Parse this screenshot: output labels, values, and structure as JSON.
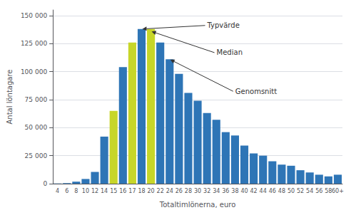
{
  "chart_data": {
    "type": "bar",
    "categories": [
      "4",
      "6",
      "8",
      "10",
      "12",
      "14",
      "15",
      "16",
      "17",
      "18",
      "20",
      "22",
      "24",
      "26",
      "28",
      "30",
      "32",
      "34",
      "36",
      "38",
      "40",
      "42",
      "44",
      "46",
      "48",
      "50",
      "52",
      "54",
      "56",
      "58",
      "60+"
    ],
    "values": [
      200,
      500,
      1800,
      4200,
      10500,
      42000,
      65000,
      104000,
      126000,
      138000,
      138000,
      126000,
      111000,
      98000,
      81000,
      74000,
      63000,
      57000,
      46000,
      43000,
      34000,
      27000,
      25000,
      20000,
      17000,
      16000,
      12000,
      10000,
      8000,
      6500,
      8000
    ],
    "colors": [
      "#2E75B6",
      "#2E75B6",
      "#2E75B6",
      "#2E75B6",
      "#2E75B6",
      "#2E75B6",
      "#C7D629",
      "#2E75B6",
      "#C7D629",
      "#2E75B6",
      "#C7D629",
      "#2E75B6",
      "#2E75B6",
      "#2E75B6",
      "#2E75B6",
      "#2E75B6",
      "#2E75B6",
      "#2E75B6",
      "#2E75B6",
      "#2E75B6",
      "#2E75B6",
      "#2E75B6",
      "#2E75B6",
      "#2E75B6",
      "#2E75B6",
      "#2E75B6",
      "#2E75B6",
      "#2E75B6",
      "#2E75B6",
      "#2E75B6",
      "#2E75B6"
    ],
    "xlabel": "Totaltimlönerna, euro",
    "ylabel": "Antal löntagare",
    "ylim": [
      0,
      155000
    ],
    "yticks": [
      0,
      {
        "value": 25000,
        "label": "25 000"
      },
      {
        "value": 50000,
        "label": "50 000"
      },
      {
        "value": 75000,
        "label": "75 000"
      },
      {
        "value": 100000,
        "label": "100 000"
      },
      {
        "value": 125000,
        "label": "125 000"
      },
      {
        "value": 150000,
        "label": "150 000"
      }
    ],
    "grid": true,
    "annotations": [
      {
        "text": "Typvärde",
        "x": "18",
        "y": 138000
      },
      {
        "text": "Median",
        "x": "20",
        "y": 136000
      },
      {
        "text": "Genomsnitt",
        "x": "24",
        "y": 111000
      }
    ]
  }
}
